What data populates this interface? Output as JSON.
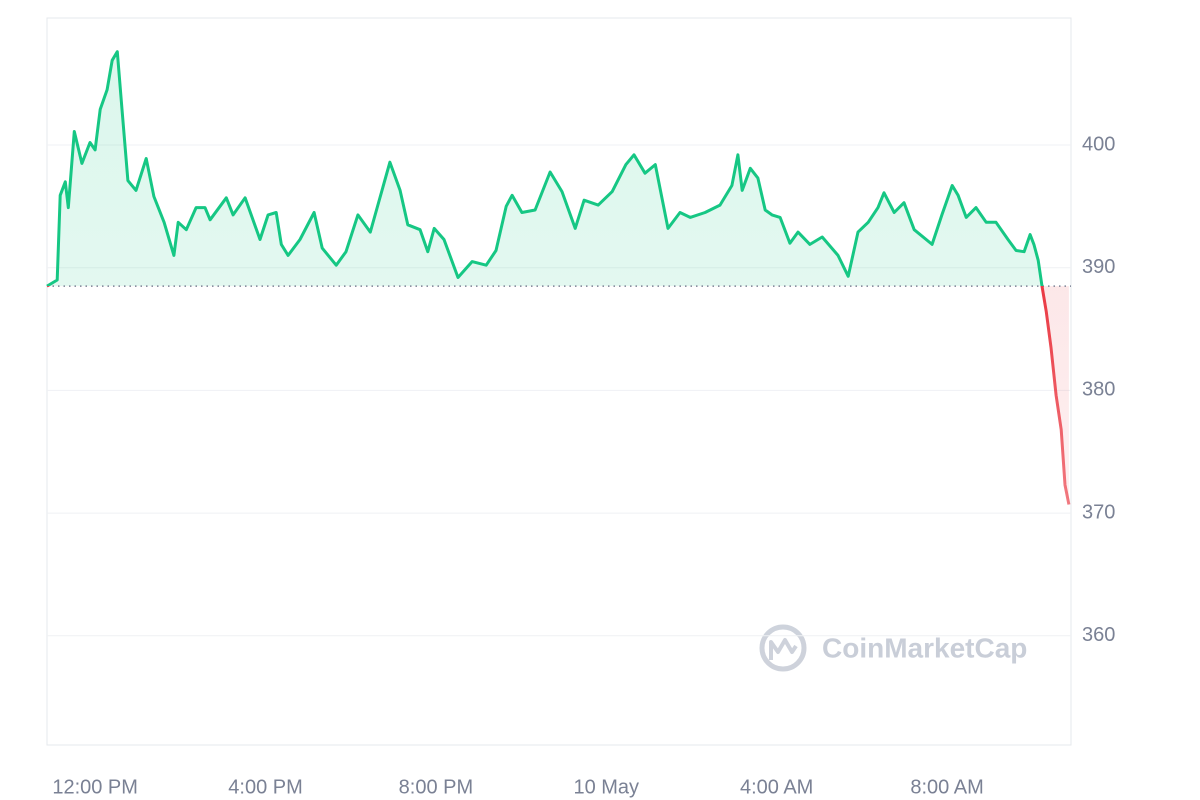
{
  "chart_data": {
    "type": "line",
    "watermark": "CoinMarketCap",
    "x": [
      -1.13,
      -0.89,
      -0.82,
      -0.7,
      -0.63,
      -0.49,
      -0.31,
      -0.12,
      0,
      0.12,
      0.28,
      0.4,
      0.52,
      0.63,
      0.77,
      0.96,
      1.2,
      1.38,
      1.62,
      1.85,
      1.95,
      2.14,
      2.37,
      2.58,
      2.7,
      3.08,
      3.24,
      3.52,
      3.87,
      4.06,
      4.25,
      4.37,
      4.53,
      4.81,
      5.14,
      5.33,
      5.66,
      5.89,
      6.17,
      6.46,
      6.92,
      7.16,
      7.34,
      7.63,
      7.81,
      7.96,
      8.19,
      8.52,
      8.85,
      9.18,
      9.41,
      9.65,
      9.79,
      10.02,
      10.33,
      10.68,
      10.96,
      11.27,
      11.48,
      11.81,
      12.14,
      12.46,
      12.65,
      12.91,
      13.15,
      13.45,
      13.73,
      13.97,
      14.32,
      14.67,
      14.95,
      15.09,
      15.19,
      15.38,
      15.56,
      15.73,
      15.89,
      16.08,
      16.31,
      16.5,
      16.78,
      17.07,
      17.44,
      17.68,
      17.91,
      18.15,
      18.38,
      18.52,
      18.76,
      18.99,
      19.23,
      19.65,
      19.88,
      20.12,
      20.26,
      20.45,
      20.68,
      20.92,
      21.15,
      21.43,
      21.62,
      21.81,
      21.95,
      22.04,
      22.14,
      22.23,
      22.33,
      22.44,
      22.56,
      22.68,
      22.77,
      22.86
    ],
    "series": [
      {
        "color": "#16c784",
        "color_below": "#ea3943",
        "values": [
          388.5,
          389.0,
          395.9,
          397.0,
          394.9,
          401.1,
          398.5,
          400.2,
          399.6,
          402.9,
          404.5,
          406.9,
          407.6,
          402.9,
          397.1,
          396.3,
          398.9,
          395.8,
          393.7,
          391.0,
          393.7,
          393.1,
          394.9,
          394.9,
          393.9,
          395.7,
          394.3,
          395.7,
          392.3,
          394.3,
          394.5,
          391.9,
          391.0,
          392.3,
          394.5,
          391.6,
          390.2,
          391.3,
          394.3,
          392.9,
          398.6,
          396.3,
          393.5,
          393.1,
          391.3,
          393.2,
          392.3,
          389.2,
          390.5,
          390.2,
          391.4,
          395.0,
          395.9,
          394.5,
          394.7,
          397.8,
          396.2,
          393.2,
          395.5,
          395.1,
          396.2,
          398.4,
          399.2,
          397.7,
          398.4,
          393.2,
          394.5,
          394.1,
          394.5,
          395.1,
          396.7,
          399.2,
          396.3,
          398.1,
          397.3,
          394.7,
          394.3,
          394.1,
          392.0,
          392.9,
          391.9,
          392.5,
          391.0,
          389.3,
          392.9,
          393.7,
          394.9,
          396.1,
          394.5,
          395.3,
          393.1,
          391.9,
          394.3,
          396.7,
          395.9,
          394.1,
          394.9,
          393.7,
          393.7,
          392.3,
          391.4,
          391.3,
          392.7,
          391.9,
          390.6,
          388.5,
          386.4,
          383.5,
          379.6,
          376.8,
          372.3,
          370.7
        ]
      }
    ],
    "baseline": 388.5,
    "xlim": [
      -1.13,
      22.91
    ],
    "ylim": [
      351.1,
      410.35
    ],
    "yticks": [
      360,
      370,
      380,
      390,
      400
    ],
    "xticks": [
      {
        "value": 0,
        "label": "12:00 PM"
      },
      {
        "value": 4,
        "label": "4:00 PM"
      },
      {
        "value": 8,
        "label": "8:00 PM"
      },
      {
        "value": 12,
        "label": "10 May"
      },
      {
        "value": 16,
        "label": "4:00 AM"
      },
      {
        "value": 20,
        "label": "8:00 AM"
      }
    ],
    "grid": true
  }
}
